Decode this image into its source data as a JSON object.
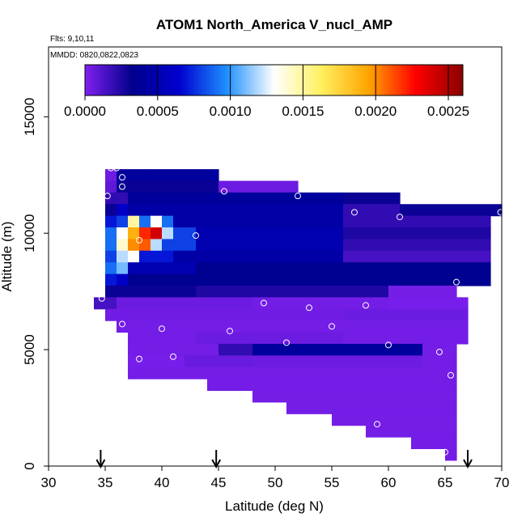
{
  "chart_data": {
    "type": "heatmap",
    "title": "ATOM1 North_America V_nucl_AMP",
    "subtitle_flights": "Flts: 9,10,11",
    "subtitle_dates": "MMDD: 0820,0822,0823",
    "xlabel": "Latitude (deg N)",
    "ylabel": "Altitude (m)",
    "xlim": [
      30,
      70
    ],
    "ylim": [
      0,
      18000
    ],
    "x_ticks": [
      30,
      35,
      40,
      45,
      50,
      55,
      60,
      65,
      70
    ],
    "y_ticks": [
      0,
      5000,
      10000,
      15000
    ],
    "colorbar": {
      "min": 0.0,
      "max": 0.0026,
      "tick_values": [
        0.0,
        0.0005,
        0.001,
        0.0015,
        0.002,
        0.0025
      ],
      "tick_labels": [
        "0.0000",
        "0.0005",
        "0.0010",
        "0.0015",
        "0.0020",
        "0.0025"
      ],
      "stops": [
        "#8020f0",
        "#00008c",
        "#0000d0",
        "#1e90ff",
        "#ffffff",
        "#fff060",
        "#ffa500",
        "#ff0000",
        "#8b0000"
      ]
    },
    "grid": {
      "lat_step": 1,
      "alt_step": 500,
      "rows": [
        {
          "alt": 12500,
          "cells": [
            [
              35.0,
              36.0,
              5e-05
            ],
            [
              36.0,
              39.0,
              0.0004
            ],
            [
              39.0,
              45.0,
              0.0004
            ]
          ]
        },
        {
          "alt": 12000,
          "cells": [
            [
              35.0,
              36.0,
              8e-05
            ],
            [
              36.0,
              45.0,
              0.0003
            ],
            [
              45.0,
              52.0,
              5e-05
            ]
          ]
        },
        {
          "alt": 11500,
          "cells": [
            [
              35.0,
              37.0,
              0.0002
            ],
            [
              37.0,
              56.0,
              0.0004
            ],
            [
              56.0,
              61.0,
              0.0003
            ]
          ]
        },
        {
          "alt": 11000,
          "cells": [
            [
              35.0,
              36.0,
              0.0003
            ],
            [
              36.0,
              37.0,
              0.0006
            ],
            [
              37.0,
              56.0,
              0.00045
            ],
            [
              56.0,
              61.0,
              0.0002
            ],
            [
              61.0,
              70.0,
              0.0003
            ]
          ]
        },
        {
          "alt": 10500,
          "cells": [
            [
              35.0,
              36.0,
              0.0007
            ],
            [
              36.0,
              37.0,
              0.0008
            ],
            [
              37.0,
              38.0,
              0.0015
            ],
            [
              38.0,
              39.0,
              0.0009
            ],
            [
              39.0,
              40.0,
              0.0013
            ],
            [
              40.0,
              41.0,
              0.0009
            ],
            [
              41.0,
              56.0,
              0.00045
            ],
            [
              56.0,
              69.0,
              0.0002
            ]
          ]
        },
        {
          "alt": 10000,
          "cells": [
            [
              35.0,
              36.0,
              0.0009
            ],
            [
              36.0,
              37.0,
              0.0013
            ],
            [
              37.0,
              38.0,
              0.0019
            ],
            [
              38.0,
              39.0,
              0.0022
            ],
            [
              39.0,
              40.0,
              0.0024
            ],
            [
              40.0,
              41.0,
              0.0012
            ],
            [
              41.0,
              43.0,
              0.0008
            ],
            [
              43.0,
              56.0,
              0.0005
            ],
            [
              56.0,
              69.0,
              0.00025
            ]
          ]
        },
        {
          "alt": 9500,
          "cells": [
            [
              35.0,
              36.0,
              0.0009
            ],
            [
              36.0,
              37.0,
              0.0014
            ],
            [
              37.0,
              38.0,
              0.002
            ],
            [
              38.0,
              39.0,
              0.0021
            ],
            [
              39.0,
              40.0,
              0.0012
            ],
            [
              40.0,
              43.0,
              0.0008
            ],
            [
              43.0,
              56.0,
              0.0005
            ],
            [
              56.0,
              69.0,
              0.0002
            ]
          ]
        },
        {
          "alt": 9000,
          "cells": [
            [
              35.0,
              36.0,
              0.0008
            ],
            [
              36.0,
              37.0,
              0.0012
            ],
            [
              37.0,
              38.0,
              0.0013
            ],
            [
              38.0,
              41.0,
              0.0007
            ],
            [
              41.0,
              56.0,
              0.00045
            ],
            [
              56.0,
              69.0,
              0.00015
            ]
          ]
        },
        {
          "alt": 8500,
          "cells": [
            [
              35.0,
              36.0,
              0.0009
            ],
            [
              36.0,
              37.0,
              0.0011
            ],
            [
              37.0,
              43.0,
              0.0005
            ],
            [
              43.0,
              69.0,
              0.00035
            ]
          ]
        },
        {
          "alt": 8000,
          "cells": [
            [
              35.0,
              36.0,
              0.0007
            ],
            [
              36.0,
              37.0,
              0.0006
            ],
            [
              37.0,
              69.0,
              0.00035
            ]
          ]
        },
        {
          "alt": 7500,
          "cells": [
            [
              35.0,
              43.0,
              0.0003
            ],
            [
              43.0,
              60.0,
              0.00025
            ],
            [
              60.0,
              66.0,
              3e-05
            ]
          ]
        },
        {
          "alt": 7000,
          "cells": [
            [
              34.0,
              36.0,
              0.00015
            ],
            [
              36.0,
              48.0,
              5e-05
            ],
            [
              48.0,
              60.0,
              3e-05
            ],
            [
              60.0,
              67.0,
              2e-05
            ]
          ]
        },
        {
          "alt": 6500,
          "cells": [
            [
              35.0,
              56.0,
              4e-05
            ],
            [
              56.0,
              67.0,
              5e-05
            ]
          ]
        },
        {
          "alt": 6000,
          "cells": [
            [
              36.0,
              67.0,
              3e-05
            ]
          ]
        },
        {
          "alt": 5500,
          "cells": [
            [
              37.0,
              43.0,
              3e-05
            ],
            [
              43.0,
              56.0,
              5e-05
            ],
            [
              56.0,
              67.0,
              3e-05
            ]
          ]
        },
        {
          "alt": 5000,
          "cells": [
            [
              37.0,
              45.0,
              3e-05
            ],
            [
              45.0,
              48.0,
              0.0002
            ],
            [
              48.0,
              63.0,
              0.0004
            ],
            [
              63.0,
              66.0,
              3e-05
            ]
          ]
        },
        {
          "alt": 4500,
          "cells": [
            [
              37.0,
              42.0,
              2e-05
            ],
            [
              42.0,
              48.0,
              6e-05
            ],
            [
              48.0,
              63.0,
              5e-05
            ],
            [
              63.0,
              66.0,
              3e-05
            ]
          ]
        },
        {
          "alt": 4000,
          "cells": [
            [
              37.0,
              66.0,
              3e-05
            ]
          ]
        },
        {
          "alt": 3500,
          "cells": [
            [
              44.0,
              66.0,
              3e-05
            ]
          ]
        },
        {
          "alt": 3000,
          "cells": [
            [
              48.0,
              66.0,
              3e-05
            ]
          ]
        },
        {
          "alt": 2500,
          "cells": [
            [
              51.0,
              66.0,
              3e-05
            ]
          ]
        },
        {
          "alt": 2000,
          "cells": [
            [
              55.0,
              66.0,
              3e-05
            ]
          ]
        },
        {
          "alt": 1500,
          "cells": [
            [
              58.0,
              66.0,
              3e-05
            ]
          ]
        },
        {
          "alt": 1000,
          "cells": [
            [
              62.0,
              66.0,
              3e-05
            ]
          ]
        },
        {
          "alt": 500,
          "cells": [
            [
              65.0,
              66.0,
              3e-05
            ]
          ]
        }
      ]
    },
    "sample_points": [
      {
        "lat": 35.5,
        "alt": 12800
      },
      {
        "lat": 36.0,
        "alt": 12800
      },
      {
        "lat": 36.5,
        "alt": 12400
      },
      {
        "lat": 36.5,
        "alt": 12000
      },
      {
        "lat": 35.2,
        "alt": 11600
      },
      {
        "lat": 45.5,
        "alt": 11800
      },
      {
        "lat": 52.0,
        "alt": 11600
      },
      {
        "lat": 57.0,
        "alt": 10900
      },
      {
        "lat": 61.0,
        "alt": 10700
      },
      {
        "lat": 69.9,
        "alt": 10900
      },
      {
        "lat": 43.0,
        "alt": 9900
      },
      {
        "lat": 38.0,
        "alt": 9700
      },
      {
        "lat": 66.0,
        "alt": 7900
      },
      {
        "lat": 34.7,
        "alt": 7200
      },
      {
        "lat": 49.0,
        "alt": 7000
      },
      {
        "lat": 53.0,
        "alt": 6800
      },
      {
        "lat": 58.0,
        "alt": 6900
      },
      {
        "lat": 36.5,
        "alt": 6100
      },
      {
        "lat": 40.0,
        "alt": 5900
      },
      {
        "lat": 46.0,
        "alt": 5800
      },
      {
        "lat": 55.0,
        "alt": 6000
      },
      {
        "lat": 51.0,
        "alt": 5300
      },
      {
        "lat": 60.0,
        "alt": 5200
      },
      {
        "lat": 64.5,
        "alt": 4900
      },
      {
        "lat": 38.0,
        "alt": 4600
      },
      {
        "lat": 41.0,
        "alt": 4700
      },
      {
        "lat": 65.5,
        "alt": 3900
      },
      {
        "lat": 59.0,
        "alt": 1800
      },
      {
        "lat": 65.0,
        "alt": 600
      }
    ],
    "arrows_at_lat": [
      34.6,
      44.8,
      67.0
    ]
  }
}
